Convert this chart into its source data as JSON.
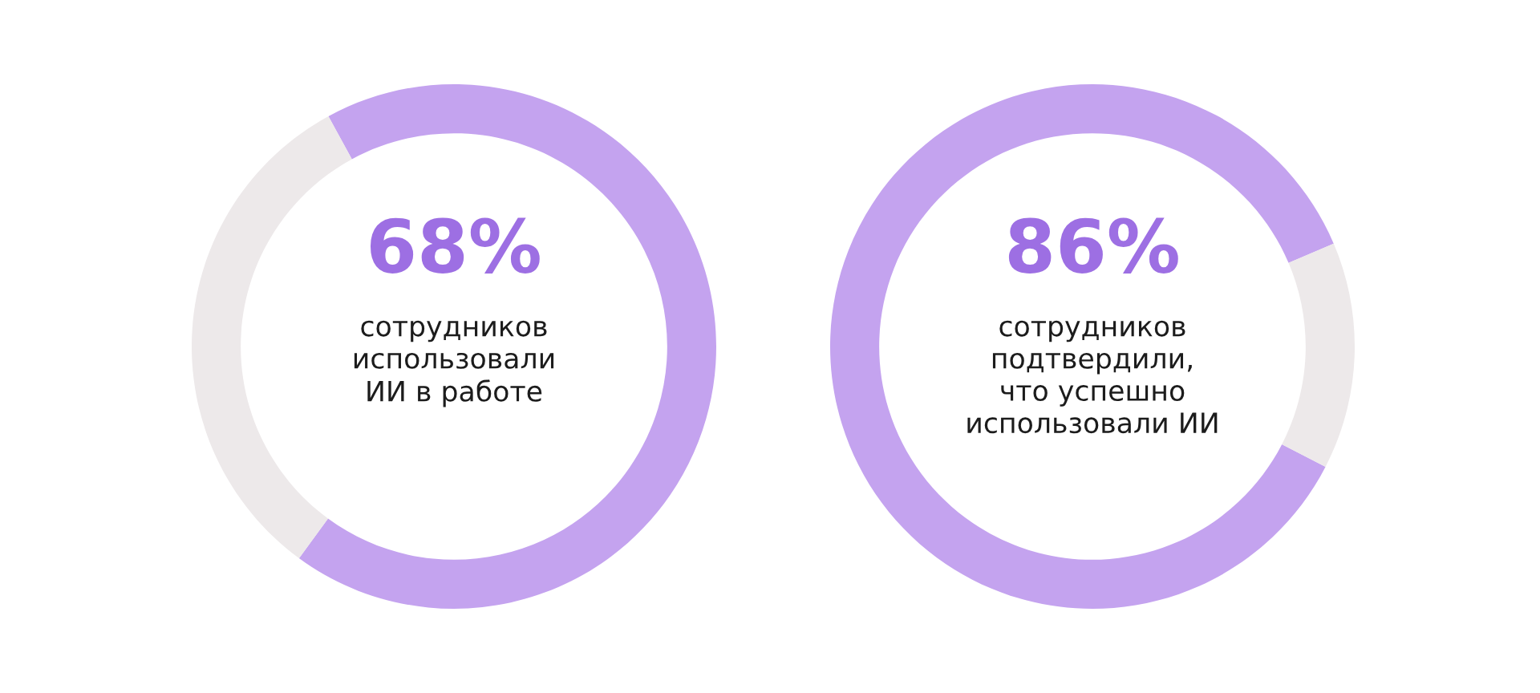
{
  "chart_data": [
    {
      "type": "donut",
      "title": "68%",
      "categories": [
        null,
        null
      ],
      "values": [
        68,
        32
      ],
      "colors": [
        "#c4a3ef",
        "#ede9ea"
      ],
      "annotations": [
        "сотрудников\nиспользовали\nИИ в работе"
      ]
    },
    {
      "type": "donut",
      "title": "86%",
      "categories": [
        null,
        null
      ],
      "values": [
        86,
        14
      ],
      "colors": [
        "#c4a3ef",
        "#ede9ea"
      ],
      "annotations": [
        "сотрудников\nподтвердили,\nчто успешно\nиспользовали ИИ"
      ]
    }
  ]
}
